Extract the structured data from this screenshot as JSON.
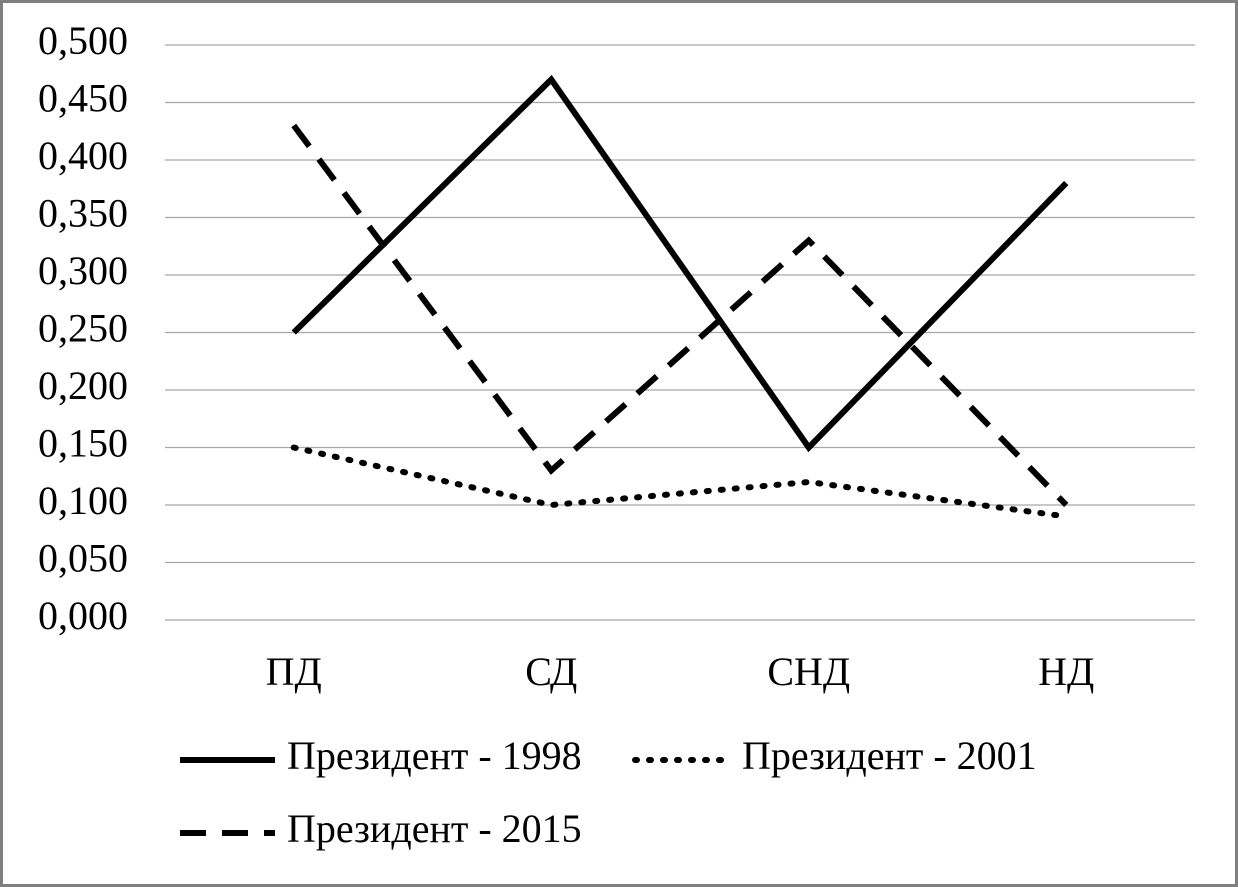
{
  "chart_data": {
    "type": "line",
    "categories": [
      "ПД",
      "СД",
      "СНД",
      "НД"
    ],
    "series": [
      {
        "name": "Президент - 1998",
        "color": "#000000",
        "style": "solid",
        "values": [
          0.25,
          0.47,
          0.15,
          0.38
        ]
      },
      {
        "name": "Президент - 2001",
        "color": "#000000",
        "style": "dotted",
        "values": [
          0.15,
          0.1,
          0.12,
          0.09
        ]
      },
      {
        "name": "Президент - 2015",
        "color": "#000000",
        "style": "dashed",
        "values": [
          0.43,
          0.13,
          0.33,
          0.1
        ]
      }
    ],
    "ylim": [
      0,
      0.5
    ],
    "yticks": [
      {
        "value": 0,
        "label": "0,000"
      },
      {
        "value": 0.05,
        "label": "0,050"
      },
      {
        "value": 0.1,
        "label": "0,100"
      },
      {
        "value": 0.15,
        "label": "0,150"
      },
      {
        "value": 0.2,
        "label": "0,200"
      },
      {
        "value": 0.25,
        "label": "0,250"
      },
      {
        "value": 0.3,
        "label": "0,300"
      },
      {
        "value": 0.35,
        "label": "0,350"
      },
      {
        "value": 0.4,
        "label": "0,400"
      },
      {
        "value": 0.45,
        "label": "0,450"
      },
      {
        "value": 0.5,
        "label": "0,500"
      }
    ],
    "grid": true,
    "legend": "bottom"
  }
}
